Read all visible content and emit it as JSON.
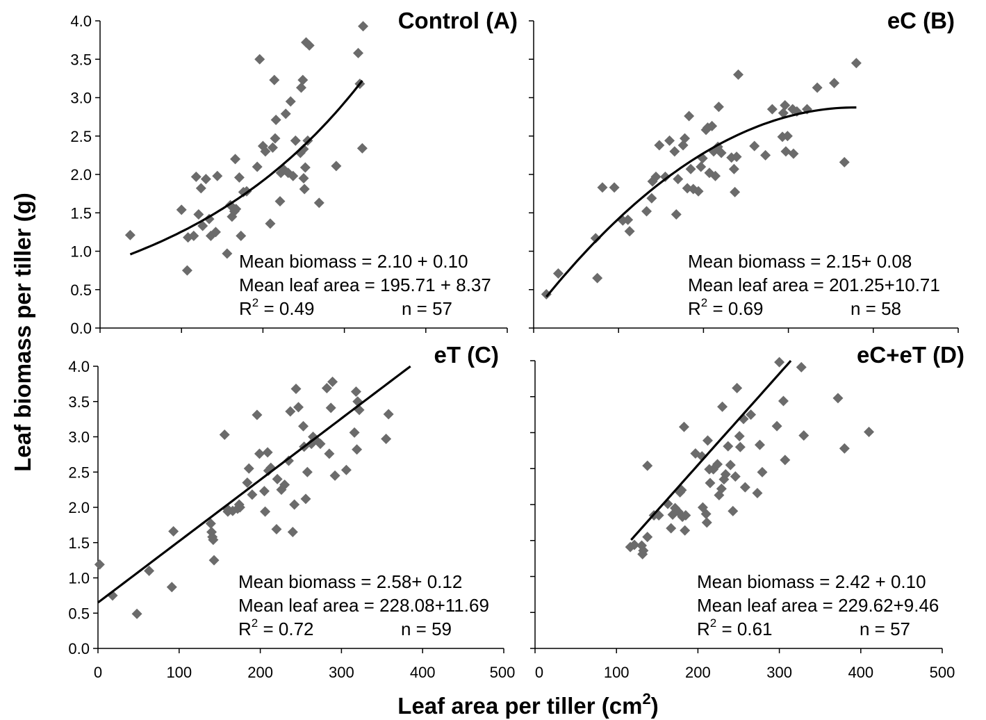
{
  "chart_data": {
    "type": "scatter",
    "ylabel": "Leaf biomass per tiller (g)",
    "xlabel": "Leaf area per tiller (cm",
    "xlabel_sup": "2",
    "xlabel_end": ")",
    "xlim": [
      0,
      500
    ],
    "ylim": [
      0,
      4
    ],
    "x_ticks": [
      "0",
      "100",
      "200",
      "300",
      "400",
      "500"
    ],
    "y_ticks": [
      "0.0",
      "0.5",
      "1.0",
      "1.5",
      "2.0",
      "2.5",
      "3.0",
      "3.5",
      "4.0"
    ],
    "grid": false,
    "marker": "diamond",
    "marker_color": "#6b6b6b",
    "line_color": "#000000",
    "panels": [
      {
        "title": "Control (A)",
        "stats": {
          "mean_biomass": "Mean biomass = 2.10 + 0.10",
          "mean_leaf_area": "Mean leaf area = 195.71 + 8.37",
          "r2_prefix": "R",
          "r2_sup": "2",
          "r2_value": " = 0.49",
          "n": "n = 57"
        },
        "fit": {
          "type": "exponential",
          "a": 0.82,
          "b": 0.00425,
          "x_range": [
            37,
            322
          ]
        },
        "points": [
          [
            37,
            1.21
          ],
          [
            107,
            0.75
          ],
          [
            100,
            1.54
          ],
          [
            108,
            1.18
          ],
          [
            115,
            1.2
          ],
          [
            118,
            1.97
          ],
          [
            121,
            1.48
          ],
          [
            124,
            1.82
          ],
          [
            126,
            1.33
          ],
          [
            130,
            1.94
          ],
          [
            134,
            1.42
          ],
          [
            136,
            1.2
          ],
          [
            144,
            1.98
          ],
          [
            142,
            1.25
          ],
          [
            156,
            0.97
          ],
          [
            160,
            1.6
          ],
          [
            162,
            1.45
          ],
          [
            165,
            1.52
          ],
          [
            166,
            2.2
          ],
          [
            167,
            1.55
          ],
          [
            171,
            1.96
          ],
          [
            173,
            1.2
          ],
          [
            176,
            1.77
          ],
          [
            180,
            1.78
          ],
          [
            193,
            2.1
          ],
          [
            196,
            3.5
          ],
          [
            200,
            2.37
          ],
          [
            209,
            1.36
          ],
          [
            212,
            2.35
          ],
          [
            214,
            3.23
          ],
          [
            215,
            2.47
          ],
          [
            216,
            2.71
          ],
          [
            221,
            1.65
          ],
          [
            222,
            2.02
          ],
          [
            226,
            2.06
          ],
          [
            228,
            2.79
          ],
          [
            231,
            2.02
          ],
          [
            234,
            2.95
          ],
          [
            237,
            1.98
          ],
          [
            240,
            2.44
          ],
          [
            246,
            2.28
          ],
          [
            247,
            3.13
          ],
          [
            249,
            3.23
          ],
          [
            250,
            2.33
          ],
          [
            250,
            1.95
          ],
          [
            251,
            1.81
          ],
          [
            252,
            2.09
          ],
          [
            253,
            3.72
          ],
          [
            255,
            2.44
          ],
          [
            257,
            3.68
          ],
          [
            269,
            1.63
          ],
          [
            290,
            2.11
          ],
          [
            317,
            3.58
          ],
          [
            319,
            3.18
          ],
          [
            322,
            2.34
          ],
          [
            323,
            3.93
          ],
          [
            203,
            2.3
          ]
        ]
      },
      {
        "title": "eC (B)",
        "stats": {
          "mean_biomass": "Mean biomass = 2.15+ 0.08",
          "mean_leaf_area": "Mean leaf area = 201.25+10.71",
          "r2_prefix": "R",
          "r2_sup": "2",
          "r2_value": " = 0.69",
          "n": "n = 58"
        },
        "fit": {
          "type": "polynomial",
          "c0": 0.2,
          "c1": 0.0141,
          "c2": -1.86e-05,
          "x_range": [
            15,
            380
          ]
        },
        "points": [
          [
            15,
            0.44
          ],
          [
            29,
            0.71
          ],
          [
            73,
            1.17
          ],
          [
            75,
            0.65
          ],
          [
            81,
            1.83
          ],
          [
            95,
            1.83
          ],
          [
            105,
            1.4
          ],
          [
            111,
            1.41
          ],
          [
            113,
            1.26
          ],
          [
            133,
            1.52
          ],
          [
            139,
            1.69
          ],
          [
            140,
            1.91
          ],
          [
            144,
            1.97
          ],
          [
            148,
            2.38
          ],
          [
            155,
            1.97
          ],
          [
            160,
            2.44
          ],
          [
            166,
            2.3
          ],
          [
            168,
            1.48
          ],
          [
            170,
            1.94
          ],
          [
            176,
            2.38
          ],
          [
            178,
            2.47
          ],
          [
            181,
            1.82
          ],
          [
            183,
            2.76
          ],
          [
            185,
            2.07
          ],
          [
            188,
            1.81
          ],
          [
            194,
            1.78
          ],
          [
            197,
            2.1
          ],
          [
            199,
            2.21
          ],
          [
            203,
            2.58
          ],
          [
            205,
            2.61
          ],
          [
            207,
            2.02
          ],
          [
            210,
            2.63
          ],
          [
            212,
            2.3
          ],
          [
            214,
            1.98
          ],
          [
            217,
            2.36
          ],
          [
            218,
            2.88
          ],
          [
            221,
            2.28
          ],
          [
            233,
            2.22
          ],
          [
            236,
            2.07
          ],
          [
            237,
            1.77
          ],
          [
            239,
            2.23
          ],
          [
            241,
            3.3
          ],
          [
            260,
            2.37
          ],
          [
            273,
            2.25
          ],
          [
            281,
            2.85
          ],
          [
            293,
            2.49
          ],
          [
            294,
            2.8
          ],
          [
            296,
            2.9
          ],
          [
            297,
            2.3
          ],
          [
            299,
            2.5
          ],
          [
            305,
            2.85
          ],
          [
            306,
            2.27
          ],
          [
            310,
            2.82
          ],
          [
            322,
            2.85
          ],
          [
            334,
            3.13
          ],
          [
            354,
            3.19
          ],
          [
            366,
            2.16
          ],
          [
            380,
            3.45
          ]
        ]
      },
      {
        "title": "eT (C)",
        "stats": {
          "mean_biomass": "Mean biomass = 2.58+ 0.12",
          "mean_leaf_area": "Mean leaf area = 228.08+11.69",
          "r2_prefix": "R",
          "r2_sup": "2",
          "r2_value": " = 0.72",
          "n": "n = 59"
        },
        "fit": {
          "type": "linear",
          "a": 0.65,
          "b": 0.0087,
          "x_range": [
            0,
            385
          ]
        },
        "points": [
          [
            2,
            1.19
          ],
          [
            18,
            0.75
          ],
          [
            48,
            0.49
          ],
          [
            63,
            1.1
          ],
          [
            91,
            0.87
          ],
          [
            93,
            1.66
          ],
          [
            139,
            1.77
          ],
          [
            140,
            1.65
          ],
          [
            141,
            1.58
          ],
          [
            142,
            1.54
          ],
          [
            143,
            1.25
          ],
          [
            156,
            3.03
          ],
          [
            160,
            1.97
          ],
          [
            166,
            1.95
          ],
          [
            172,
            1.98
          ],
          [
            174,
            2.04
          ],
          [
            184,
            2.35
          ],
          [
            186,
            2.55
          ],
          [
            190,
            2.18
          ],
          [
            196,
            3.31
          ],
          [
            199,
            2.76
          ],
          [
            205,
            2.23
          ],
          [
            206,
            1.94
          ],
          [
            209,
            2.78
          ],
          [
            210,
            2.52
          ],
          [
            213,
            2.56
          ],
          [
            220,
            1.69
          ],
          [
            221,
            2.4
          ],
          [
            226,
            2.25
          ],
          [
            235,
            2.66
          ],
          [
            237,
            3.36
          ],
          [
            240,
            1.65
          ],
          [
            242,
            2.04
          ],
          [
            244,
            3.68
          ],
          [
            247,
            3.42
          ],
          [
            253,
            3.15
          ],
          [
            254,
            2.86
          ],
          [
            256,
            2.12
          ],
          [
            258,
            2.5
          ],
          [
            263,
            2.9
          ],
          [
            268,
            2.96
          ],
          [
            274,
            2.9
          ],
          [
            282,
            3.69
          ],
          [
            285,
            2.76
          ],
          [
            287,
            3.41
          ],
          [
            289,
            3.78
          ],
          [
            292,
            2.45
          ],
          [
            306,
            2.53
          ],
          [
            316,
            3.06
          ],
          [
            318,
            3.64
          ],
          [
            319,
            2.82
          ],
          [
            320,
            3.5
          ],
          [
            322,
            3.38
          ],
          [
            355,
            2.97
          ],
          [
            358,
            3.32
          ],
          [
            160,
            1.94
          ],
          [
            175,
            2.0
          ],
          [
            230,
            2.32
          ],
          [
            265,
            3.0
          ]
        ]
      },
      {
        "title": "eC+eT (D)",
        "stats": {
          "mean_biomass": "Mean biomass = 2.42 + 0.10",
          "mean_leaf_area": "Mean leaf area = 229.62+9.46",
          "r2_prefix": "R",
          "r2_sup": "2",
          "r2_value": " = 0.61",
          "n": "n = 57"
        },
        "fit": {
          "type": "linear",
          "a": 0.01,
          "b": 0.0127,
          "x_range": [
            118,
            405
          ]
        },
        "points": [
          [
            117,
            1.41
          ],
          [
            122,
            1.44
          ],
          [
            131,
            1.43
          ],
          [
            132,
            1.31
          ],
          [
            133,
            1.36
          ],
          [
            138,
            1.55
          ],
          [
            138,
            2.54
          ],
          [
            146,
            1.85
          ],
          [
            152,
            1.85
          ],
          [
            163,
            2.01
          ],
          [
            167,
            1.67
          ],
          [
            169,
            1.86
          ],
          [
            172,
            1.95
          ],
          [
            176,
            1.9
          ],
          [
            178,
            2.17
          ],
          [
            180,
            2.2
          ],
          [
            181,
            1.83
          ],
          [
            183,
            3.08
          ],
          [
            184,
            1.64
          ],
          [
            185,
            1.85
          ],
          [
            197,
            2.71
          ],
          [
            205,
            2.67
          ],
          [
            206,
            1.96
          ],
          [
            210,
            1.87
          ],
          [
            211,
            1.75
          ],
          [
            212,
            2.89
          ],
          [
            214,
            2.49
          ],
          [
            219,
            2.49
          ],
          [
            224,
            2.56
          ],
          [
            226,
            2.13
          ],
          [
            229,
            2.22
          ],
          [
            230,
            3.36
          ],
          [
            232,
            2.35
          ],
          [
            234,
            2.42
          ],
          [
            237,
            2.81
          ],
          [
            243,
            1.91
          ],
          [
            246,
            2.39
          ],
          [
            248,
            3.62
          ],
          [
            251,
            2.95
          ],
          [
            252,
            2.8
          ],
          [
            256,
            3.19
          ],
          [
            258,
            2.24
          ],
          [
            265,
            3.25
          ],
          [
            273,
            2.16
          ],
          [
            276,
            2.83
          ],
          [
            279,
            2.45
          ],
          [
            297,
            3.09
          ],
          [
            300,
            3.98
          ],
          [
            305,
            3.44
          ],
          [
            307,
            2.62
          ],
          [
            327,
            3.91
          ],
          [
            330,
            2.96
          ],
          [
            372,
            3.48
          ],
          [
            380,
            2.78
          ],
          [
            410,
            3.01
          ],
          [
            215,
            2.3
          ],
          [
            240,
            2.55
          ]
        ]
      }
    ]
  }
}
